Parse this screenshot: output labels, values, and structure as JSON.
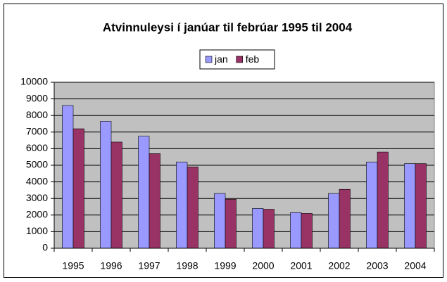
{
  "chart_data": {
    "type": "bar",
    "title": "Atvinnuleysi í janúar til febrúar 1995 til 2004",
    "categories": [
      "1995",
      "1996",
      "1997",
      "1998",
      "1999",
      "2000",
      "2001",
      "2002",
      "2003",
      "2004"
    ],
    "series": [
      {
        "name": "jan",
        "color": "#9999ff",
        "values": [
          8600,
          7650,
          6750,
          5200,
          3300,
          2400,
          2150,
          3300,
          5200,
          5100
        ]
      },
      {
        "name": "feb",
        "color": "#993366",
        "values": [
          7200,
          6400,
          5700,
          4900,
          2950,
          2350,
          2100,
          3550,
          5800,
          5100
        ]
      }
    ],
    "ylim": [
      0,
      10000
    ],
    "yticks": [
      0,
      1000,
      2000,
      3000,
      4000,
      5000,
      6000,
      7000,
      8000,
      9000,
      10000
    ],
    "grid": true,
    "legend": "top"
  }
}
